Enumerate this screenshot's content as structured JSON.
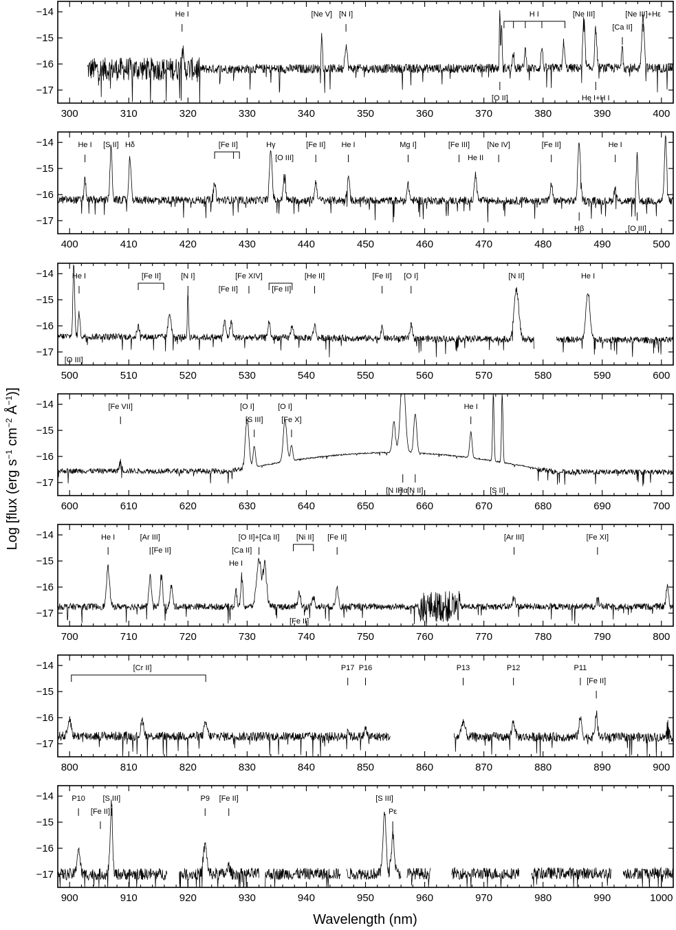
{
  "figure": {
    "xlabel": "Wavelength (nm)",
    "ylabel_main": "Log [flux (erg s",
    "ylabel_sup1": "−1",
    "ylabel_mid": " cm",
    "ylabel_sup2": "−2",
    "ylabel_unit": " Å",
    "ylabel_sup3": "−1",
    "ylabel_end": ")]"
  },
  "chart_data": [
    {
      "type": "line",
      "xlim": [
        298,
        402
      ],
      "ylim": [
        -17.5,
        -13.6
      ],
      "xticks": [
        300,
        310,
        320,
        330,
        340,
        350,
        360,
        370,
        380,
        390,
        400
      ],
      "yticks": [
        -14,
        -15,
        -16,
        -17
      ],
      "xlabel": "Wavelength (nm)",
      "continuum": {
        "x": [
          303,
          402
        ],
        "y": [
          -16.2,
          -16.15
        ],
        "noise": 0.35,
        "extra_noise": [
          303,
          322,
          0.9
        ]
      },
      "peaks": [
        [
          319.0,
          1.0,
          0.15
        ],
        [
          342.6,
          1.3,
          0.12
        ],
        [
          346.7,
          0.9,
          0.2
        ],
        [
          372.7,
          2.3,
          0.08
        ],
        [
          373.0,
          1.8,
          0.08
        ],
        [
          375.0,
          0.6,
          0.15
        ],
        [
          377.0,
          0.7,
          0.15
        ],
        [
          379.8,
          0.8,
          0.15
        ],
        [
          383.5,
          1.0,
          0.15
        ],
        [
          386.9,
          1.9,
          0.18
        ],
        [
          388.9,
          1.5,
          0.18
        ],
        [
          393.4,
          1.0,
          0.12
        ],
        [
          396.9,
          1.9,
          0.22
        ]
      ],
      "labels": [
        {
          "text": "He I",
          "x": 319.0,
          "tick": true
        },
        {
          "text": "[Ne V]",
          "x": 342.6,
          "tick": false
        },
        {
          "text": "[N I]",
          "x": 346.7,
          "tick": true
        },
        {
          "text": "H I",
          "x": 378.5,
          "tick": false
        },
        {
          "text": "[Ne III]",
          "x": 386.9,
          "tick": true
        },
        {
          "text": "[Ne III]+Hε",
          "x": 396.9,
          "tick": true
        },
        {
          "text": "[Ca II]",
          "x": 393.4,
          "tick": true,
          "row": 2
        },
        {
          "text": "[O II]",
          "x": 372.7,
          "tick": true,
          "below": true
        },
        {
          "text": "He I+H I",
          "x": 388.9,
          "tick": true,
          "below": true
        }
      ],
      "brackets": [
        {
          "x1": 373.4,
          "x2": 383.7,
          "sub": [
            375.0,
            377.0,
            379.8
          ]
        }
      ]
    },
    {
      "type": "line",
      "xlim": [
        398,
        502
      ],
      "ylim": [
        -17.5,
        -13.6
      ],
      "xticks": [
        400,
        410,
        420,
        430,
        440,
        450,
        460,
        470,
        480,
        490,
        500
      ],
      "yticks": [
        -14,
        -15,
        -16,
        -17
      ],
      "continuum": {
        "x": [
          398,
          502
        ],
        "y": [
          -16.2,
          -16.25
        ],
        "noise": 0.3
      },
      "peaks": [
        [
          402.6,
          0.8,
          0.15
        ],
        [
          407.0,
          2.0,
          0.18
        ],
        [
          410.2,
          1.6,
          0.18
        ],
        [
          424.5,
          0.6,
          0.2
        ],
        [
          434.0,
          1.9,
          0.22
        ],
        [
          436.3,
          1.1,
          0.18
        ],
        [
          441.6,
          0.7,
          0.2
        ],
        [
          447.1,
          0.9,
          0.2
        ],
        [
          457.2,
          0.6,
          0.2
        ],
        [
          468.6,
          1.0,
          0.2
        ],
        [
          481.4,
          0.6,
          0.2
        ],
        [
          486.1,
          2.3,
          0.22
        ],
        [
          492.2,
          0.5,
          0.2
        ],
        [
          495.9,
          1.8,
          0.15
        ],
        [
          500.7,
          2.4,
          0.2
        ]
      ],
      "labels": [
        {
          "text": "He I",
          "x": 402.6,
          "tick": true
        },
        {
          "text": "[S II]",
          "x": 407.0,
          "tick": false
        },
        {
          "text": "Hδ",
          "x": 410.2,
          "tick": false
        },
        {
          "text": "[Fe II]",
          "x": 426.8,
          "tick": false
        },
        {
          "text": "Hγ",
          "x": 434.0,
          "tick": false
        },
        {
          "text": "[O III]",
          "x": 436.3,
          "tick": false,
          "row": 2
        },
        {
          "text": "[Fe II]",
          "x": 441.6,
          "tick": true
        },
        {
          "text": "He I",
          "x": 447.1,
          "tick": true
        },
        {
          "text": "Mg I]",
          "x": 457.2,
          "tick": true
        },
        {
          "text": "[Fe III]",
          "x": 465.8,
          "tick": true
        },
        {
          "text": "He II",
          "x": 468.6,
          "tick": false,
          "row": 2
        },
        {
          "text": "[Ne IV]",
          "x": 472.5,
          "tick": true
        },
        {
          "text": "[Fe II]",
          "x": 481.4,
          "tick": true
        },
        {
          "text": "He I",
          "x": 492.2,
          "tick": true
        },
        {
          "text": "Hβ",
          "x": 486.1,
          "tick": true,
          "below": true
        },
        {
          "text": "[O III]",
          "x": 495.9,
          "tick": true,
          "below": true
        }
      ],
      "brackets": [
        {
          "x1": 424.5,
          "x2": 428.7,
          "sub": [
            427.7
          ]
        }
      ]
    },
    {
      "type": "line",
      "xlim": [
        498,
        602
      ],
      "ylim": [
        -17.5,
        -13.6
      ],
      "xticks": [
        500,
        510,
        520,
        530,
        540,
        550,
        560,
        570,
        580,
        590,
        600
      ],
      "yticks": [
        -14,
        -15,
        -16,
        -17
      ],
      "continuum": {
        "x": [
          498,
          602
        ],
        "y": [
          -16.4,
          -16.55
        ],
        "noise": 0.25,
        "gap": [
          578.5,
          582.2
        ]
      },
      "peaks": [
        [
          500.7,
          2.7,
          0.15
        ],
        [
          501.6,
          0.9,
          0.15
        ],
        [
          516.9,
          0.9,
          0.25
        ],
        [
          511.6,
          0.4,
          0.2
        ],
        [
          520.0,
          1.7,
          0.1
        ],
        [
          526.2,
          0.6,
          0.2
        ],
        [
          527.3,
          0.6,
          0.2
        ],
        [
          533.7,
          0.6,
          0.2
        ],
        [
          537.6,
          0.5,
          0.2
        ],
        [
          541.4,
          0.5,
          0.2
        ],
        [
          552.8,
          0.4,
          0.2
        ],
        [
          557.7,
          0.5,
          0.2
        ],
        [
          575.5,
          1.9,
          0.4
        ],
        [
          587.6,
          1.8,
          0.35
        ]
      ],
      "labels": [
        {
          "text": "He I",
          "x": 501.6,
          "tick": true
        },
        {
          "text": "[Fe II]",
          "x": 513.8,
          "tick": false
        },
        {
          "text": "[N I]",
          "x": 520.0,
          "tick": true
        },
        {
          "text": "[Fe XIV]",
          "x": 530.3,
          "tick": true
        },
        {
          "text": "[Fe II]",
          "x": 526.8,
          "tick": false,
          "row": 2
        },
        {
          "text": "[Fe II]",
          "x": 535.8,
          "tick": false,
          "row": 2
        },
        {
          "text": "[He II]",
          "x": 541.4,
          "tick": true
        },
        {
          "text": "[Fe II]",
          "x": 552.8,
          "tick": true
        },
        {
          "text": "[O I]",
          "x": 557.7,
          "tick": true
        },
        {
          "text": "[N II]",
          "x": 575.5,
          "tick": false
        },
        {
          "text": "He I",
          "x": 587.6,
          "tick": false
        },
        {
          "text": "[O III]",
          "x": 500.7,
          "tick": false,
          "below": true
        }
      ],
      "brackets": [
        {
          "x1": 511.6,
          "x2": 515.9,
          "sub": []
        },
        {
          "x1": 533.7,
          "x2": 537.6,
          "sub": []
        }
      ]
    },
    {
      "type": "line",
      "xlim": [
        598,
        702
      ],
      "ylim": [
        -17.5,
        -13.6
      ],
      "xticks": [
        600,
        610,
        620,
        630,
        640,
        650,
        660,
        670,
        680,
        690,
        700
      ],
      "yticks": [
        -14,
        -15,
        -16,
        -17
      ],
      "continuum": {
        "x": [
          598,
          702
        ],
        "y": [
          -16.55,
          -16.6
        ],
        "noise": 0.2,
        "hump": [
          627,
          682,
          -15.85
        ]
      },
      "peaks": [
        [
          608.6,
          0.4,
          0.2
        ],
        [
          630.0,
          1.9,
          0.3
        ],
        [
          631.2,
          0.8,
          0.2
        ],
        [
          636.4,
          1.6,
          0.3
        ],
        [
          637.5,
          0.6,
          0.2
        ],
        [
          654.8,
          1.2,
          0.25
        ],
        [
          656.3,
          3.1,
          0.4
        ],
        [
          658.4,
          1.5,
          0.25
        ],
        [
          667.8,
          1.0,
          0.2
        ],
        [
          671.6,
          2.6,
          0.12
        ],
        [
          673.1,
          2.7,
          0.12
        ]
      ],
      "labels": [
        {
          "text": "[Fe VII]",
          "x": 608.6,
          "tick": true
        },
        {
          "text": "[O I]",
          "x": 630.0,
          "tick": false
        },
        {
          "text": "[S III]",
          "x": 631.2,
          "tick": true,
          "row": 2
        },
        {
          "text": "[O I]",
          "x": 636.4,
          "tick": false
        },
        {
          "text": "[Fe X]",
          "x": 637.5,
          "tick": true,
          "row": 2
        },
        {
          "text": "He I",
          "x": 667.8,
          "tick": true
        },
        {
          "text": "Hα",
          "x": 656.3,
          "tick": true,
          "below": true
        },
        {
          "text": "[N II]",
          "x": 654.8,
          "tick": false,
          "below": true,
          "row": 2
        },
        {
          "text": "[N II]",
          "x": 658.4,
          "tick": true,
          "below": true,
          "row": 2
        },
        {
          "text": "[S II]",
          "x": 672.3,
          "tick": false,
          "below": true,
          "row": 2
        }
      ],
      "brackets": []
    },
    {
      "type": "line",
      "xlim": [
        698,
        802
      ],
      "ylim": [
        -17.5,
        -13.6
      ],
      "xticks": [
        700,
        710,
        720,
        730,
        740,
        750,
        760,
        770,
        780,
        790,
        800
      ],
      "yticks": [
        -14,
        -15,
        -16,
        -17
      ],
      "continuum": {
        "x": [
          698,
          802
        ],
        "y": [
          -16.75,
          -16.75
        ],
        "noise": 0.25,
        "extra_noise": [
          759,
          766,
          1.2
        ]
      },
      "peaks": [
        [
          706.5,
          1.5,
          0.25
        ],
        [
          713.6,
          1.2,
          0.2
        ],
        [
          715.5,
          1.3,
          0.2
        ],
        [
          717.2,
          0.8,
          0.2
        ],
        [
          728.1,
          0.7,
          0.15
        ],
        [
          729.1,
          1.3,
          0.15
        ],
        [
          732.0,
          1.8,
          0.4
        ],
        [
          733.0,
          1.6,
          0.3
        ],
        [
          738.8,
          0.6,
          0.2
        ],
        [
          741.2,
          0.4,
          0.2
        ],
        [
          745.2,
          0.8,
          0.2
        ],
        [
          775.1,
          0.4,
          0.2
        ],
        [
          789.2,
          0.4,
          0.2
        ],
        [
          801.0,
          0.8,
          0.2
        ]
      ],
      "labels": [
        {
          "text": "He I",
          "x": 706.5,
          "tick": true
        },
        {
          "text": "[Ar III]",
          "x": 713.6,
          "tick": true
        },
        {
          "text": "[Fe II]",
          "x": 715.5,
          "tick": false,
          "row": 2
        },
        {
          "text": "He I",
          "x": 728.1,
          "tick": false,
          "row": 3
        },
        {
          "text": "[O II]+[Ca II]",
          "x": 732.0,
          "tick": true
        },
        {
          "text": "[Ca II]",
          "x": 729.1,
          "tick": false,
          "row": 2
        },
        {
          "text": "[Ni II]",
          "x": 739.8,
          "tick": false
        },
        {
          "text": "[Fe II]",
          "x": 745.2,
          "tick": true
        },
        {
          "text": "[Ar III]",
          "x": 775.1,
          "tick": true
        },
        {
          "text": "[Fe XI]",
          "x": 789.2,
          "tick": true
        },
        {
          "text": "[Fe II]",
          "x": 738.8,
          "tick": false,
          "below": true
        }
      ],
      "brackets": [
        {
          "x1": 737.8,
          "x2": 741.2,
          "sub": []
        }
      ]
    },
    {
      "type": "line",
      "xlim": [
        798,
        902
      ],
      "ylim": [
        -17.5,
        -13.6
      ],
      "xticks": [
        800,
        810,
        820,
        830,
        840,
        850,
        860,
        870,
        880,
        890,
        900
      ],
      "yticks": [
        -14,
        -15,
        -16,
        -17
      ],
      "continuum": {
        "x": [
          798,
          902
        ],
        "y": [
          -16.7,
          -16.75
        ],
        "noise": 0.35,
        "gap": [
          854.2,
          864.9
        ]
      },
      "peaks": [
        [
          800.0,
          0.7,
          0.25
        ],
        [
          812.3,
          0.6,
          0.25
        ],
        [
          823.0,
          0.5,
          0.25
        ],
        [
          847.0,
          0.3,
          0.2
        ],
        [
          850.0,
          0.3,
          0.2
        ],
        [
          866.5,
          0.6,
          0.3
        ],
        [
          875.0,
          0.6,
          0.25
        ],
        [
          886.3,
          0.7,
          0.25
        ],
        [
          889.0,
          0.9,
          0.2
        ],
        [
          901.0,
          0.6,
          0.2
        ]
      ],
      "labels": [
        {
          "text": "[Cr II]",
          "x": 812.3,
          "tick": false
        },
        {
          "text": "P17",
          "x": 847.0,
          "tick": true
        },
        {
          "text": "P16",
          "x": 850.0,
          "tick": true
        },
        {
          "text": "P13",
          "x": 866.5,
          "tick": true
        },
        {
          "text": "P12",
          "x": 875.0,
          "tick": true
        },
        {
          "text": "P11",
          "x": 886.3,
          "tick": true
        },
        {
          "text": "[Fe II]",
          "x": 889.0,
          "tick": true,
          "row": 2
        }
      ],
      "brackets": [
        {
          "x1": 800.3,
          "x2": 823.0,
          "sub": []
        }
      ]
    },
    {
      "type": "line",
      "xlim": [
        898,
        1002
      ],
      "ylim": [
        -17.5,
        -13.6
      ],
      "xticks": [
        900,
        910,
        920,
        930,
        940,
        950,
        960,
        970,
        980,
        990,
        1000
      ],
      "yticks": [
        -14,
        -15,
        -16,
        -17
      ],
      "continuum": {
        "x": [
          898,
          1002
        ],
        "y": [
          -17.0,
          -16.95
        ],
        "noise": 0.45,
        "gaps": [
          [
            916.5,
            918.5
          ],
          [
            932.0,
            933.0
          ],
          [
            945.8,
            946.8
          ],
          [
            956.0,
            957.0
          ],
          [
            961.0,
            964.5
          ],
          [
            976.0,
            978.0
          ],
          [
            991.5,
            993.5
          ]
        ]
      },
      "peaks": [
        [
          901.5,
          1.0,
          0.25
        ],
        [
          906.9,
          0.8,
          0.25
        ],
        [
          907.1,
          2.2,
          0.15
        ],
        [
          922.9,
          1.1,
          0.3
        ],
        [
          926.9,
          0.3,
          0.2
        ],
        [
          953.2,
          2.4,
          0.25
        ],
        [
          954.6,
          1.6,
          0.25
        ]
      ],
      "labels": [
        {
          "text": "P10",
          "x": 901.5,
          "tick": true
        },
        {
          "text": "[S III]",
          "x": 907.1,
          "tick": true
        },
        {
          "text": "[Fe II]",
          "x": 905.2,
          "tick": true,
          "row": 2
        },
        {
          "text": "P9",
          "x": 922.9,
          "tick": true
        },
        {
          "text": "[Fe II]",
          "x": 926.9,
          "tick": true
        },
        {
          "text": "[S III]",
          "x": 953.2,
          "tick": false
        },
        {
          "text": "Pε",
          "x": 954.6,
          "tick": true,
          "row": 2
        }
      ],
      "brackets": []
    }
  ]
}
